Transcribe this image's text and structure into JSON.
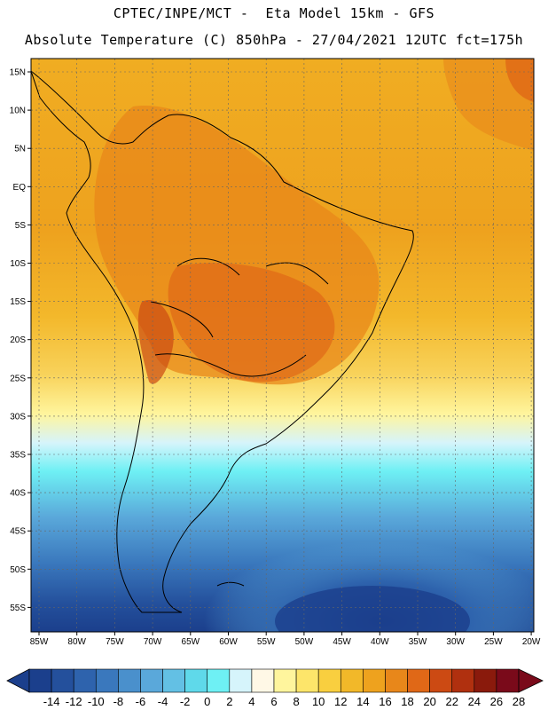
{
  "header": {
    "line1": "CPTEC/INPE/MCT -  Eta Model 15km - GFS",
    "line2": "Absolute Temperature (C) 850hPa - 27/04/2021 12UTC fct=175h"
  },
  "map": {
    "lat_labels": [
      "15N",
      "10N",
      "5N",
      "EQ",
      "5S",
      "10S",
      "15S",
      "20S",
      "25S",
      "30S",
      "35S",
      "40S",
      "45S",
      "50S",
      "55S"
    ],
    "lon_labels": [
      "85W",
      "80W",
      "75W",
      "70W",
      "65W",
      "60W",
      "55W",
      "50W",
      "45W",
      "40W",
      "35W",
      "30W",
      "25W",
      "20W"
    ]
  },
  "colorbar": {
    "labels": [
      "-14",
      "-12",
      "-10",
      "-8",
      "-6",
      "-4",
      "-2",
      "0",
      "2",
      "4",
      "6",
      "8",
      "10",
      "12",
      "14",
      "16",
      "18",
      "20",
      "22",
      "24",
      "26",
      "28"
    ],
    "colors": [
      "#1b3f8c",
      "#24509c",
      "#2e63ad",
      "#3a78bd",
      "#4a90cc",
      "#5aa8da",
      "#63c0e4",
      "#5fd9ea",
      "#6ef0f4",
      "#d6f4fb",
      "#fff8e6",
      "#fff59d",
      "#fde56a",
      "#f9cf3f",
      "#f2b829",
      "#eea21e",
      "#e8871a",
      "#e06817",
      "#cc4a13",
      "#b0300f",
      "#8a1a0c",
      "#7a0a1a"
    ]
  }
}
